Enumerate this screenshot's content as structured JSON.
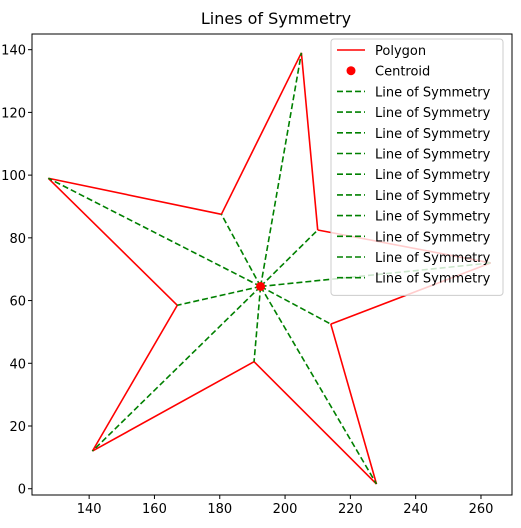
{
  "chart_data": {
    "type": "line",
    "title": "Lines of Symmetry",
    "xlabel": "",
    "ylabel": "",
    "xlim": [
      122.5,
      269.5
    ],
    "ylim": [
      -2,
      145
    ],
    "x_ticks": [
      140,
      160,
      180,
      200,
      220,
      240,
      260
    ],
    "y_ticks": [
      0,
      20,
      40,
      60,
      80,
      100,
      120,
      140
    ],
    "grid": false,
    "legend_position": "top-right",
    "polygon": {
      "name": "Polygon",
      "color": "#ff0000",
      "points": [
        [
          205,
          139
        ],
        [
          210,
          82.5
        ],
        [
          263,
          72
        ],
        [
          214,
          52.5
        ],
        [
          228,
          1.5
        ],
        [
          190.5,
          40.5
        ],
        [
          141,
          12
        ],
        [
          167,
          58.5
        ],
        [
          127.5,
          99
        ],
        [
          180.5,
          87.5
        ],
        [
          205,
          139
        ]
      ]
    },
    "centroid": {
      "name": "Centroid",
      "color": "#ff0000",
      "x": 192.5,
      "y": 64.5
    },
    "symmetry_lines": {
      "name": "Line of Symmetry",
      "color": "#008000",
      "endpoints": [
        [
          205,
          139
        ],
        [
          210,
          82.5
        ],
        [
          263,
          72
        ],
        [
          214,
          52.5
        ],
        [
          228,
          1.5
        ],
        [
          190.5,
          40.5
        ],
        [
          141,
          12
        ],
        [
          167,
          58.5
        ],
        [
          127.5,
          99
        ],
        [
          180.5,
          87.5
        ]
      ]
    },
    "legend": [
      "Polygon",
      "Centroid",
      "Line of Symmetry",
      "Line of Symmetry",
      "Line of Symmetry",
      "Line of Symmetry",
      "Line of Symmetry",
      "Line of Symmetry",
      "Line of Symmetry",
      "Line of Symmetry",
      "Line of Symmetry",
      "Line of Symmetry"
    ]
  }
}
